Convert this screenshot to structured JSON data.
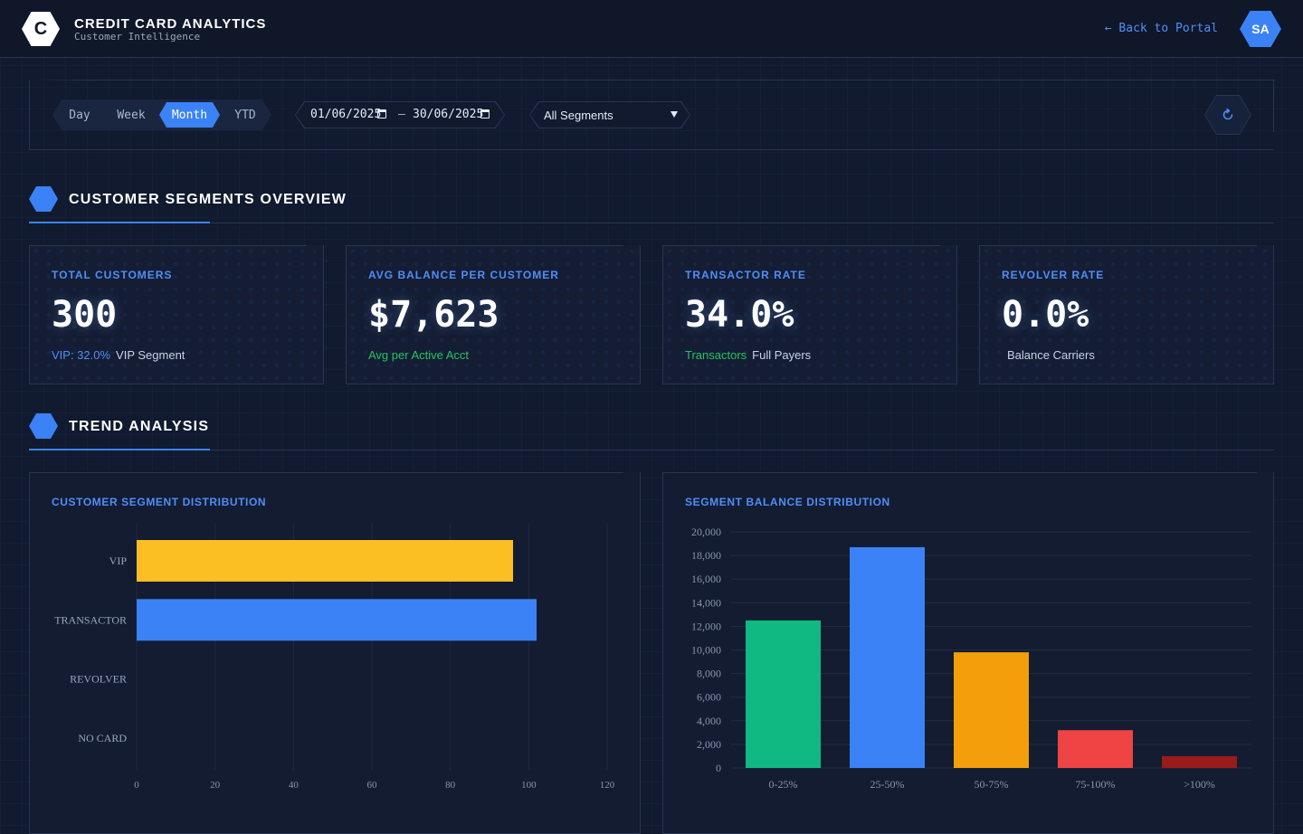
{
  "header": {
    "logo_letter": "C",
    "title": "CREDIT CARD ANALYTICS",
    "subtitle": "Customer Intelligence",
    "back_link": "← Back to Portal",
    "avatar_initials": "SA"
  },
  "toolbar": {
    "periods": [
      "Day",
      "Week",
      "Month",
      "YTD"
    ],
    "active_period": "Month",
    "date_from": "01/06/2025",
    "date_to": "30/06/2025",
    "date_separator": "–",
    "segment_filter": "All Segments"
  },
  "sections": {
    "overview_title": "CUSTOMER SEGMENTS OVERVIEW",
    "trend_title": "TREND ANALYSIS"
  },
  "kpis": [
    {
      "label": "TOTAL CUSTOMERS",
      "value": "300",
      "sub_highlight": "VIP: 32.0%",
      "sub_highlight_color": "#4f8ef7",
      "sub_text": "VIP Segment"
    },
    {
      "label": "AVG BALANCE PER CUSTOMER",
      "value": "$7,623",
      "sub_highlight": "Avg per Active Acct",
      "sub_highlight_color": "#22c55e",
      "sub_text": ""
    },
    {
      "label": "TRANSACTOR RATE",
      "value": "34.0%",
      "sub_highlight": "Transactors",
      "sub_highlight_color": "#22c55e",
      "sub_text": "Full Payers"
    },
    {
      "label": "REVOLVER RATE",
      "value": "0.0%",
      "sub_highlight": "",
      "sub_highlight_color": "#c8d2e4",
      "sub_text": "Balance Carriers"
    }
  ],
  "charts": {
    "left_title": "CUSTOMER SEGMENT DISTRIBUTION",
    "right_title": "SEGMENT BALANCE DISTRIBUTION"
  },
  "colors": {
    "accent": "#3b82f6",
    "background": "#111a2e"
  },
  "chart_data": [
    {
      "type": "bar",
      "orientation": "horizontal",
      "title": "CUSTOMER SEGMENT DISTRIBUTION",
      "categories": [
        "VIP",
        "TRANSACTOR",
        "REVOLVER",
        "NO CARD"
      ],
      "values": [
        96,
        102,
        0,
        0
      ],
      "colors": [
        "#fbbf24",
        "#3b82f6",
        "#ef4444",
        "#6b7280"
      ],
      "xlim": [
        0,
        120
      ],
      "xticks": [
        0,
        20,
        40,
        60,
        80,
        100,
        120
      ],
      "grid": true
    },
    {
      "type": "bar",
      "orientation": "vertical",
      "title": "SEGMENT BALANCE DISTRIBUTION",
      "categories": [
        "0-25%",
        "25-50%",
        "50-75%",
        "75-100%",
        ">100%"
      ],
      "values": [
        12500,
        18700,
        9800,
        3200,
        1000
      ],
      "colors": [
        "#10b981",
        "#3b82f6",
        "#f59e0b",
        "#ef4444",
        "#991b1b"
      ],
      "ylim": [
        0,
        20000
      ],
      "yticks": [
        "0",
        "2,000",
        "4,000",
        "6,000",
        "8,000",
        "10,000",
        "12,000",
        "14,000",
        "16,000",
        "18,000",
        "20,000"
      ],
      "grid": true
    }
  ]
}
